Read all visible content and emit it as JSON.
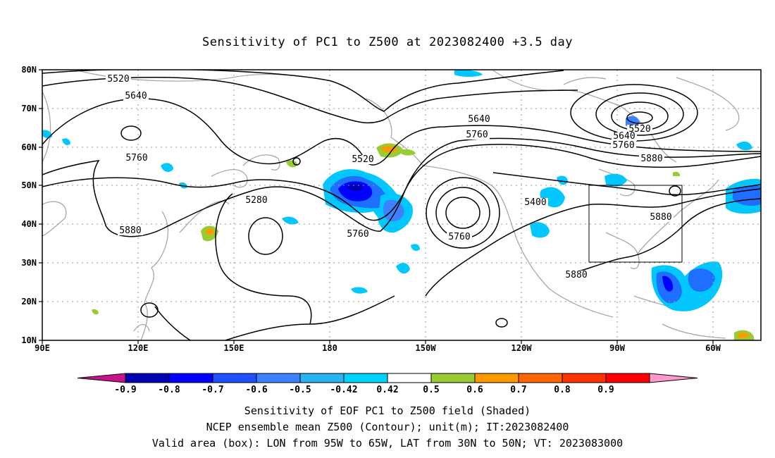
{
  "title": "Sensitivity of PC1 to Z500 at 2023082400 +3.5 day",
  "lat_labels": [
    "80N",
    "70N",
    "60N",
    "50N",
    "40N",
    "30N",
    "20N",
    "10N"
  ],
  "lon_labels": [
    "90E",
    "120E",
    "150E",
    "180",
    "150W",
    "120W",
    "90W",
    "60W"
  ],
  "contour_labels": [
    "5520",
    "5640",
    "5760",
    "5880",
    "5520",
    "5640",
    "5760",
    "5760",
    "5760",
    "5880",
    "5280",
    "5400",
    "5520",
    "5640",
    "5760",
    "5880",
    "5880"
  ],
  "colorbar": {
    "labels": [
      "-0.9",
      "-0.8",
      "-0.7",
      "-0.6",
      "-0.5",
      "-0.42",
      "0.42",
      "0.5",
      "0.6",
      "0.7",
      "0.8",
      "0.9"
    ],
    "colors": [
      "#c8148c",
      "#0000b4",
      "#0000ff",
      "#1e50ff",
      "#3c82ff",
      "#28b4f0",
      "#00d2ff",
      "#ffffff",
      "#99cc33",
      "#ff9900",
      "#ff6600",
      "#ff3300",
      "#ff0000",
      "#ff99cc"
    ]
  },
  "box": {
    "lon_range": "95W to 65W",
    "lat_range": "30N to 50N"
  },
  "captions": [
    "Sensitivity of EOF PC1 to Z500 field (Shaded)",
    "NCEP ensemble mean Z500 (Contour); unit(m); IT:2023082400",
    "Valid area (box): LON from 95W to 65W, LAT from 30N to 50N; VT: 2023083000"
  ]
}
